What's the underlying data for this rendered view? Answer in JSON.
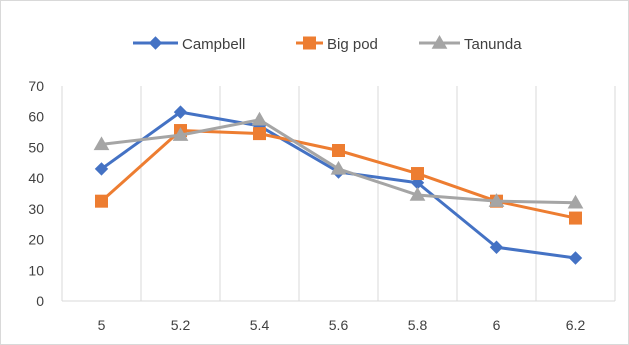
{
  "chart_data": {
    "type": "line",
    "title": "",
    "xlabel": "",
    "ylabel": "",
    "x": [
      "5",
      "5.2",
      "5.4",
      "5.6",
      "5.8",
      "6",
      "6.2"
    ],
    "ylim": [
      0,
      70
    ],
    "yticks": [
      0,
      10,
      20,
      30,
      40,
      50,
      60,
      70
    ],
    "grid": "vertical",
    "legend_position": "top",
    "series": [
      {
        "name": "Campbell",
        "color": "#4472C4",
        "marker": "diamond",
        "values": [
          43,
          61.5,
          57,
          42,
          38.5,
          17.5,
          14
        ]
      },
      {
        "name": "Big pod",
        "color": "#ED7D31",
        "marker": "square",
        "values": [
          32.5,
          55.5,
          54.5,
          49,
          41.5,
          32.5,
          27
        ]
      },
      {
        "name": "Tanunda",
        "color": "#A5A5A5",
        "marker": "triangle",
        "values": [
          51,
          54,
          59,
          43,
          34.5,
          32.5,
          32
        ]
      }
    ]
  }
}
